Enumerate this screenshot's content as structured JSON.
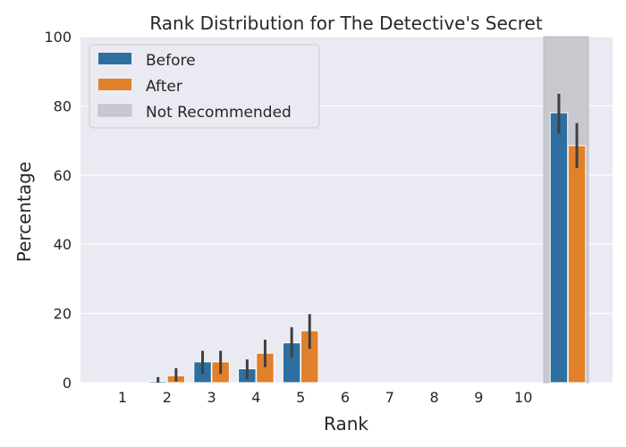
{
  "chart_data": {
    "type": "bar",
    "title": "Rank Distribution for The Detective's Secret",
    "xlabel": "Rank",
    "ylabel": "Percentage",
    "ylim": [
      0,
      100
    ],
    "yticks": [
      0,
      20,
      40,
      60,
      80,
      100
    ],
    "categories": [
      "1",
      "2",
      "3",
      "4",
      "5",
      "6",
      "7",
      "8",
      "9",
      "10"
    ],
    "extra_category": "Not Recommended",
    "grid": true,
    "legend_position": "top-left",
    "series": [
      {
        "name": "Before",
        "color": "#2e6f9f",
        "values": [
          0,
          0.4,
          6,
          4,
          11.5,
          0,
          0,
          0,
          0,
          0
        ],
        "errors": [
          [
            0,
            0
          ],
          [
            0,
            1.6
          ],
          [
            2.5,
            9.2
          ],
          [
            1.0,
            6.7
          ],
          [
            7.2,
            16.0
          ],
          [
            0,
            0
          ],
          [
            0,
            0
          ],
          [
            0,
            0
          ],
          [
            0,
            0
          ],
          [
            0,
            0
          ]
        ],
        "not_recommended": 78,
        "not_recommended_error": [
          72,
          83.5
        ]
      },
      {
        "name": "After",
        "color": "#e1812c",
        "values": [
          0,
          2,
          6,
          8.5,
          15,
          0,
          0,
          0,
          0,
          0
        ],
        "errors": [
          [
            0,
            0
          ],
          [
            0.3,
            4.2
          ],
          [
            2.5,
            9.2
          ],
          [
            4.5,
            12.4
          ],
          [
            9.8,
            19.8
          ],
          [
            0,
            0
          ],
          [
            0,
            0
          ],
          [
            0,
            0
          ],
          [
            0,
            0
          ],
          [
            0,
            0
          ]
        ],
        "not_recommended": 68.5,
        "not_recommended_error": [
          62,
          75
        ]
      }
    ],
    "not_recommended_band": {
      "name": "Not Recommended",
      "color": "#c8c8cf"
    }
  }
}
